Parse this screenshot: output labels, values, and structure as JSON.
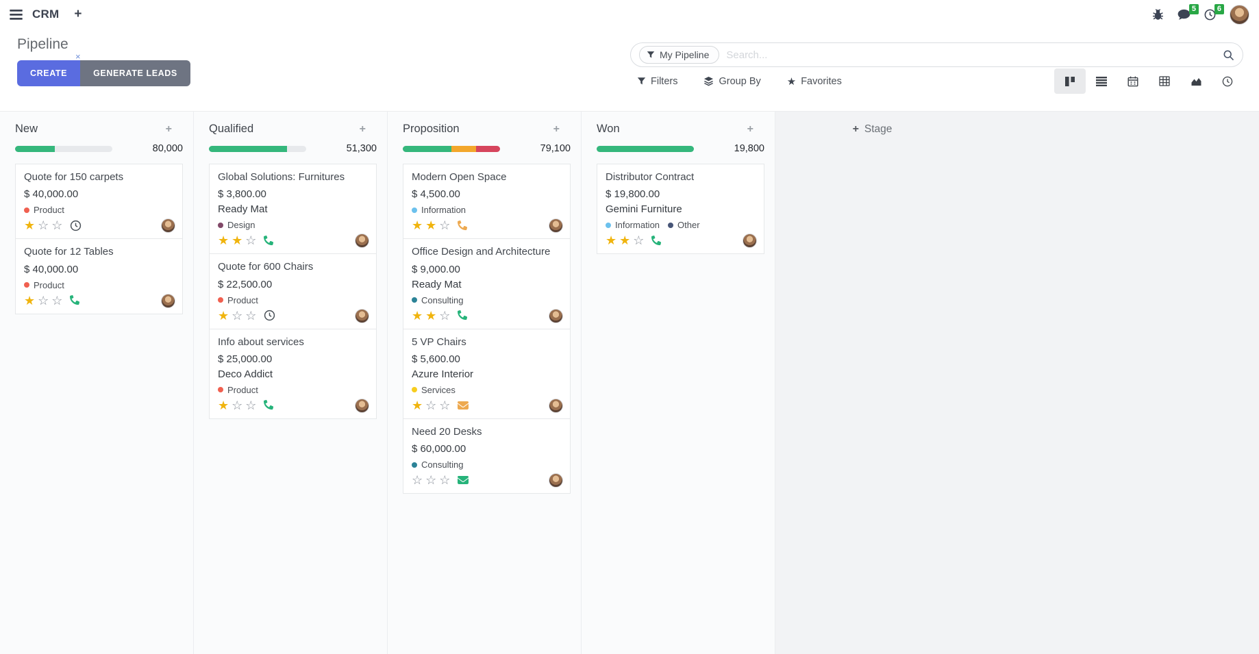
{
  "navbar": {
    "app_name": "CRM",
    "icons": [
      "menu-icon",
      "plus-icon",
      "bug-icon",
      "messages-icon",
      "activities-icon",
      "avatar"
    ],
    "messages_badge": "5",
    "activities_badge": "6"
  },
  "control_panel": {
    "title": "Pipeline",
    "create_label": "CREATE",
    "generate_leads_label": "GENERATE LEADS",
    "search": {
      "facet": "My Pipeline",
      "placeholder": "Search...",
      "facet_close": "×"
    },
    "filters_label": "Filters",
    "group_by_label": "Group By",
    "favorites_label": "Favorites",
    "view_switcher": [
      "kanban-view",
      "list-view",
      "calendar-view",
      "pivot-view",
      "graph-view",
      "activity-view"
    ],
    "active_view": "kanban-view"
  },
  "theme": {
    "progress": {
      "success": "#35b77c",
      "warning": "#f3a72c",
      "danger": "#d6455d"
    },
    "activity": {
      "green": "#26b37a",
      "orange": "#eda950",
      "dark": "#495057"
    },
    "accent": "#5a6ce0",
    "badge_green": "#28a745"
  },
  "board": {
    "add_stage_label": "Stage",
    "columns": [
      {
        "name": "New",
        "total": "80,000",
        "progress": [
          {
            "color": "success",
            "pct": 41
          }
        ],
        "cards": [
          {
            "title": "Quote for 150 carpets",
            "amount": "$ 40,000.00",
            "partner": null,
            "tags": [
              {
                "color": "#F06050",
                "label": "Product"
              }
            ],
            "stars": 1,
            "activity": {
              "type": "clock",
              "color": "dark"
            }
          },
          {
            "title": "Quote for 12 Tables",
            "amount": "$ 40,000.00",
            "partner": null,
            "tags": [
              {
                "color": "#F06050",
                "label": "Product"
              }
            ],
            "stars": 1,
            "activity": {
              "type": "phone",
              "color": "green"
            }
          }
        ]
      },
      {
        "name": "Qualified",
        "total": "51,300",
        "progress": [
          {
            "color": "success",
            "pct": 80
          }
        ],
        "cards": [
          {
            "title": "Global Solutions: Furnitures",
            "amount": "$ 3,800.00",
            "partner": "Ready Mat",
            "tags": [
              {
                "color": "#814968",
                "label": "Design"
              }
            ],
            "stars": 2,
            "activity": {
              "type": "phone",
              "color": "green"
            }
          },
          {
            "title": "Quote for 600 Chairs",
            "amount": "$ 22,500.00",
            "partner": null,
            "tags": [
              {
                "color": "#F06050",
                "label": "Product"
              }
            ],
            "stars": 1,
            "activity": {
              "type": "clock",
              "color": "dark"
            }
          },
          {
            "title": "Info about services",
            "amount": "$ 25,000.00",
            "partner": "Deco Addict",
            "tags": [
              {
                "color": "#F06050",
                "label": "Product"
              }
            ],
            "stars": 1,
            "activity": {
              "type": "phone",
              "color": "green"
            }
          }
        ]
      },
      {
        "name": "Proposition",
        "total": "79,100",
        "progress": [
          {
            "color": "success",
            "pct": 50
          },
          {
            "color": "warning",
            "pct": 25
          },
          {
            "color": "danger",
            "pct": 25
          }
        ],
        "cards": [
          {
            "title": "Modern Open Space",
            "amount": "$ 4,500.00",
            "partner": null,
            "tags": [
              {
                "color": "#6CC1ED",
                "label": "Information"
              }
            ],
            "stars": 2,
            "activity": {
              "type": "phone",
              "color": "orange"
            }
          },
          {
            "title": "Office Design and Architecture",
            "amount": "$ 9,000.00",
            "partner": "Ready Mat",
            "tags": [
              {
                "color": "#2C8397",
                "label": "Consulting"
              }
            ],
            "stars": 2,
            "activity": {
              "type": "phone",
              "color": "green"
            }
          },
          {
            "title": "5 VP Chairs",
            "amount": "$ 5,600.00",
            "partner": "Azure Interior",
            "tags": [
              {
                "color": "#F7CD1F",
                "label": "Services"
              }
            ],
            "stars": 1,
            "activity": {
              "type": "envelope",
              "color": "orange"
            }
          },
          {
            "title": "Need 20 Desks",
            "amount": "$ 60,000.00",
            "partner": null,
            "tags": [
              {
                "color": "#2C8397",
                "label": "Consulting"
              }
            ],
            "stars": 0,
            "activity": {
              "type": "envelope",
              "color": "green"
            }
          }
        ]
      },
      {
        "name": "Won",
        "total": "19,800",
        "progress": [
          {
            "color": "success",
            "pct": 100
          }
        ],
        "cards": [
          {
            "title": "Distributor Contract",
            "amount": "$ 19,800.00",
            "partner": "Gemini Furniture",
            "tags": [
              {
                "color": "#6CC1ED",
                "label": "Information"
              },
              {
                "color": "#475577",
                "label": "Other"
              }
            ],
            "stars": 2,
            "activity": {
              "type": "phone",
              "color": "green"
            }
          }
        ]
      }
    ]
  }
}
